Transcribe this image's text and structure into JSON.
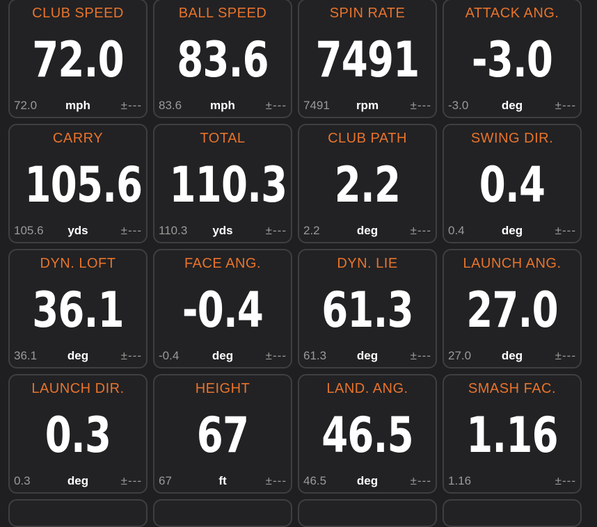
{
  "accent_color": "#e8732b",
  "tiles": [
    {
      "title": "CLUB SPEED",
      "value": "72.0",
      "sub": "72.0",
      "unit": "mph",
      "tolerance": "±---"
    },
    {
      "title": "BALL SPEED",
      "value": "83.6",
      "sub": "83.6",
      "unit": "mph",
      "tolerance": "±---"
    },
    {
      "title": "SPIN RATE",
      "value": "7491",
      "sub": "7491",
      "unit": "rpm",
      "tolerance": "±---"
    },
    {
      "title": "ATTACK ANG.",
      "value": "-3.0",
      "sub": "-3.0",
      "unit": "deg",
      "tolerance": "±---"
    },
    {
      "title": "CARRY",
      "value": "105.6",
      "sub": "105.6",
      "unit": "yds",
      "tolerance": "±---"
    },
    {
      "title": "TOTAL",
      "value": "110.3",
      "sub": "110.3",
      "unit": "yds",
      "tolerance": "±---"
    },
    {
      "title": "CLUB PATH",
      "value": "2.2",
      "sub": "2.2",
      "unit": "deg",
      "tolerance": "±---"
    },
    {
      "title": "SWING DIR.",
      "value": "0.4",
      "sub": "0.4",
      "unit": "deg",
      "tolerance": "±---"
    },
    {
      "title": "DYN. LOFT",
      "value": "36.1",
      "sub": "36.1",
      "unit": "deg",
      "tolerance": "±---"
    },
    {
      "title": "FACE ANG.",
      "value": "-0.4",
      "sub": "-0.4",
      "unit": "deg",
      "tolerance": "±---"
    },
    {
      "title": "DYN. LIE",
      "value": "61.3",
      "sub": "61.3",
      "unit": "deg",
      "tolerance": "±---"
    },
    {
      "title": "LAUNCH ANG.",
      "value": "27.0",
      "sub": "27.0",
      "unit": "deg",
      "tolerance": "±---"
    },
    {
      "title": "LAUNCH DIR.",
      "value": "0.3",
      "sub": "0.3",
      "unit": "deg",
      "tolerance": "±---"
    },
    {
      "title": "HEIGHT",
      "value": "67",
      "sub": "67",
      "unit": "ft",
      "tolerance": "±---"
    },
    {
      "title": "LAND. ANG.",
      "value": "46.5",
      "sub": "46.5",
      "unit": "deg",
      "tolerance": "±---"
    },
    {
      "title": "SMASH FAC.",
      "value": "1.16",
      "sub": "1.16",
      "unit": "",
      "tolerance": "±---"
    }
  ]
}
